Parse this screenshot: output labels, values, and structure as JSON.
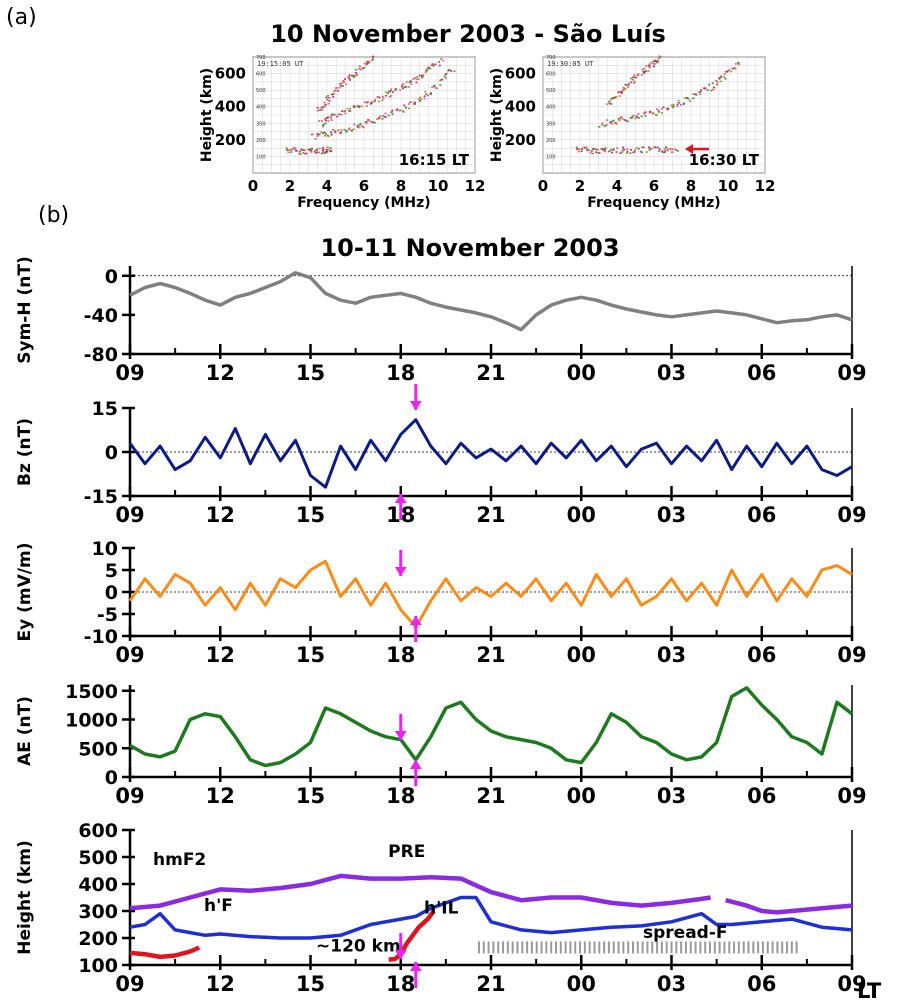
{
  "figure": {
    "panel_a_label": "(a)",
    "panel_b_label": "(b)",
    "title_a": "10 November 2003 - São Luís",
    "title_b": "10-11 November 2003",
    "x_tick_labels": [
      "09",
      "12",
      "15",
      "18",
      "21",
      "00",
      "03",
      "06",
      "09"
    ],
    "x_unit_label": "LT",
    "colors": {
      "symh": "#808080",
      "bz": "#0c1c84",
      "ey": "#ff8c1a",
      "ae": "#1f7a1f",
      "hmf2": "#8a2be2",
      "hf": "#1f2fd6",
      "hil": "#e0141e",
      "arrow": "#ee22ee",
      "spreadf": "#9a9a9a",
      "ionogram_red_arrow": "#e0141e"
    }
  },
  "chart_data": [
    {
      "type": "scatter",
      "id": "ionogram_1",
      "title": "",
      "stamp": "19:15:05 UT",
      "time_label": "16:15 LT",
      "xlabel": "Frequency (MHz)",
      "ylabel": "Height (km)",
      "xlim": [
        0,
        12
      ],
      "ylim": [
        0,
        700
      ],
      "x_ticks": [
        0,
        2,
        4,
        6,
        8,
        10,
        12
      ],
      "y_ticks": [
        200,
        400,
        600
      ],
      "small_y_ticks": [
        "100",
        "200",
        "300",
        "400",
        "500",
        "600",
        "700"
      ],
      "traces": [
        {
          "name": "",
          "x": [
            1.8,
            2.5,
            3.2,
            3.8,
            4.2
          ],
          "y": [
            145,
            135,
            138,
            140,
            150
          ]
        },
        {
          "name": "",
          "x": [
            3.2,
            4.0,
            5.0,
            6.0,
            7.0,
            8.0,
            9.0,
            10.0,
            10.8
          ],
          "y": [
            220,
            240,
            270,
            300,
            340,
            390,
            450,
            540,
            640
          ]
        },
        {
          "name": "",
          "x": [
            3.6,
            4.2,
            5.0,
            6.0,
            7.0,
            7.8,
            8.6,
            9.4,
            10.2
          ],
          "y": [
            300,
            340,
            380,
            420,
            460,
            510,
            560,
            620,
            690
          ]
        },
        {
          "name": "",
          "x": [
            3.5,
            4.0,
            4.6,
            5.2,
            5.8,
            6.5
          ],
          "y": [
            380,
            450,
            520,
            580,
            640,
            700
          ]
        }
      ]
    },
    {
      "type": "scatter",
      "id": "ionogram_2",
      "title": "",
      "stamp": "19:30:05 UT",
      "time_label": "16:30 LT",
      "xlabel": "Frequency (MHz)",
      "ylabel": "Height (km)",
      "xlim": [
        0,
        12
      ],
      "ylim": [
        0,
        700
      ],
      "x_ticks": [
        0,
        2,
        4,
        6,
        8,
        10,
        12
      ],
      "y_ticks": [
        200,
        400,
        600
      ],
      "small_y_ticks": [
        "100",
        "200",
        "300",
        "400",
        "500",
        "600",
        "700"
      ],
      "traces": [
        {
          "name": "",
          "x": [
            1.8,
            2.6,
            3.4,
            4.4,
            5.4,
            6.4,
            7.2
          ],
          "y": [
            150,
            140,
            140,
            142,
            143,
            145,
            145
          ]
        },
        {
          "name": "",
          "x": [
            3.0,
            4.0,
            5.0,
            6.0,
            7.0,
            8.0,
            9.0,
            9.8,
            10.6
          ],
          "y": [
            300,
            320,
            340,
            370,
            410,
            460,
            520,
            590,
            680
          ]
        },
        {
          "name": "",
          "x": [
            3.5,
            4.0,
            4.6,
            5.2,
            5.8,
            6.3
          ],
          "y": [
            420,
            480,
            540,
            600,
            660,
            700
          ]
        }
      ]
    },
    {
      "type": "line",
      "id": "symh",
      "ylabel": "Sym-H (nT)",
      "ylim": [
        -80,
        10
      ],
      "y_ticks": [
        0,
        -40,
        -80
      ],
      "xlim": [
        9,
        33
      ],
      "zero_line": true,
      "series": [
        {
          "name": "",
          "x": [
            9,
            9.5,
            10,
            10.5,
            11,
            11.5,
            12,
            12.5,
            13,
            13.5,
            14,
            14.5,
            15,
            15.5,
            16,
            16.5,
            17,
            17.5,
            18,
            18.5,
            19,
            19.5,
            20,
            20.5,
            21,
            21.5,
            22,
            22.5,
            23,
            23.5,
            24,
            24.5,
            25,
            25.5,
            26,
            26.5,
            27,
            27.5,
            28,
            28.5,
            29,
            29.5,
            30,
            30.5,
            31,
            31.5,
            32,
            32.5,
            33
          ],
          "values": [
            -20,
            -12,
            -8,
            -12,
            -18,
            -25,
            -30,
            -22,
            -18,
            -12,
            -6,
            3,
            -2,
            -18,
            -25,
            -28,
            -22,
            -20,
            -18,
            -22,
            -28,
            -32,
            -35,
            -38,
            -42,
            -48,
            -55,
            -40,
            -30,
            -25,
            -22,
            -25,
            -30,
            -34,
            -37,
            -40,
            -42,
            -40,
            -38,
            -36,
            -38,
            -40,
            -44,
            -48,
            -46,
            -45,
            -42,
            -40,
            -45
          ]
        }
      ]
    },
    {
      "type": "line",
      "id": "bz",
      "ylabel": "Bz (nT)",
      "ylim": [
        -15,
        15
      ],
      "y_ticks": [
        15,
        0,
        -15
      ],
      "xlim": [
        9,
        33
      ],
      "zero_line": true,
      "series": [
        {
          "name": "",
          "x": [
            9,
            9.5,
            10,
            10.5,
            11,
            11.5,
            12,
            12.5,
            13,
            13.5,
            14,
            14.5,
            15,
            15.5,
            16,
            16.5,
            17,
            17.5,
            18,
            18.5,
            19,
            19.5,
            20,
            20.5,
            21,
            21.5,
            22,
            22.5,
            23,
            23.5,
            24,
            24.5,
            25,
            25.5,
            26,
            26.5,
            27,
            27.5,
            28,
            28.5,
            29,
            29.5,
            30,
            30.5,
            31,
            31.5,
            32,
            32.5,
            33
          ],
          "values": [
            3,
            -4,
            2,
            -6,
            -3,
            5,
            -2,
            8,
            -4,
            6,
            -3,
            4,
            -8,
            -12,
            2,
            -6,
            4,
            -3,
            6,
            11,
            2,
            -4,
            3,
            -2,
            1,
            -3,
            2,
            -4,
            3,
            -2,
            4,
            -3,
            2,
            -5,
            1,
            3,
            -4,
            2,
            -3,
            4,
            -6,
            2,
            -5,
            3,
            -4,
            2,
            -6,
            -8,
            -5
          ]
        }
      ]
    },
    {
      "type": "line",
      "id": "ey",
      "ylabel": "Ey (mV/m)",
      "ylim": [
        -10,
        10
      ],
      "y_ticks": [
        10,
        5,
        0,
        -5,
        -10
      ],
      "xlim": [
        9,
        33
      ],
      "zero_line": true,
      "series": [
        {
          "name": "",
          "x": [
            9,
            9.5,
            10,
            10.5,
            11,
            11.5,
            12,
            12.5,
            13,
            13.5,
            14,
            14.5,
            15,
            15.5,
            16,
            16.5,
            17,
            17.5,
            18,
            18.5,
            19,
            19.5,
            20,
            20.5,
            21,
            21.5,
            22,
            22.5,
            23,
            23.5,
            24,
            24.5,
            25,
            25.5,
            26,
            26.5,
            27,
            27.5,
            28,
            28.5,
            29,
            29.5,
            30,
            30.5,
            31,
            31.5,
            32,
            32.5,
            33
          ],
          "values": [
            -2,
            3,
            -1,
            4,
            2,
            -3,
            1,
            -4,
            2,
            -3,
            3,
            1,
            5,
            7,
            -1,
            3,
            -3,
            2,
            -4,
            -8,
            -2,
            3,
            -2,
            1,
            -1,
            2,
            -1,
            3,
            -2,
            2,
            -3,
            4,
            -1,
            3,
            -3,
            -1,
            3,
            -2,
            2,
            -3,
            5,
            -1,
            4,
            -2,
            3,
            -1,
            5,
            6,
            4
          ]
        }
      ]
    },
    {
      "type": "line",
      "id": "ae",
      "ylabel": "AE (nT)",
      "ylim": [
        0,
        1600
      ],
      "y_ticks": [
        1500,
        1000,
        500,
        0
      ],
      "xlim": [
        9,
        33
      ],
      "series": [
        {
          "name": "",
          "x": [
            9,
            9.5,
            10,
            10.5,
            11,
            11.5,
            12,
            12.5,
            13,
            13.5,
            14,
            14.5,
            15,
            15.5,
            16,
            16.5,
            17,
            17.5,
            18,
            18.5,
            19,
            19.5,
            20,
            20.5,
            21,
            21.5,
            22,
            22.5,
            23,
            23.5,
            24,
            24.5,
            25,
            25.5,
            26,
            26.5,
            27,
            27.5,
            28,
            28.5,
            29,
            29.5,
            30,
            30.5,
            31,
            31.5,
            32,
            32.5,
            33
          ],
          "values": [
            550,
            400,
            350,
            450,
            1000,
            1100,
            1050,
            700,
            300,
            200,
            250,
            400,
            600,
            1200,
            1100,
            950,
            800,
            700,
            650,
            300,
            700,
            1200,
            1300,
            1000,
            800,
            700,
            650,
            600,
            500,
            300,
            250,
            600,
            1100,
            950,
            700,
            600,
            400,
            300,
            350,
            600,
            1400,
            1550,
            1250,
            1000,
            700,
            600,
            400,
            1300,
            1100
          ]
        }
      ]
    },
    {
      "type": "line",
      "id": "height",
      "ylabel": "Height (km)",
      "ylim": [
        100,
        600
      ],
      "y_ticks": [
        600,
        500,
        400,
        300,
        200,
        100
      ],
      "xlim": [
        9,
        33
      ],
      "labels": {
        "hmf2": "hmF2",
        "hf": "h'F",
        "hil": "h'IL",
        "pre": "PRE",
        "spreadf": "spread-F",
        "km120": "~120 km"
      },
      "spread_f_range": [
        20.6,
        31.3
      ],
      "series": [
        {
          "name": "hmF2",
          "x": [
            9,
            10,
            11,
            12,
            13,
            14,
            15,
            16,
            17,
            18,
            19,
            20,
            21,
            22,
            23,
            24,
            25,
            26,
            27,
            28,
            28.3
          ],
          "values": [
            310,
            320,
            350,
            380,
            375,
            385,
            400,
            430,
            420,
            420,
            425,
            420,
            370,
            340,
            350,
            350,
            330,
            320,
            330,
            345,
            350
          ]
        },
        {
          "name": "hmF2",
          "x": [
            28.8,
            29.5,
            30,
            30.5,
            31,
            32,
            33
          ],
          "values": [
            340,
            320,
            300,
            295,
            300,
            310,
            320
          ]
        },
        {
          "name": "h'F",
          "x": [
            9,
            9.5,
            10,
            10.5,
            11,
            11.5,
            12,
            13,
            14,
            15,
            16,
            17,
            18,
            18.5,
            19,
            19.5,
            20,
            20.5,
            21,
            22,
            23,
            24,
            25,
            26,
            27,
            28,
            28.5,
            29,
            30,
            31,
            32,
            33
          ],
          "values": [
            240,
            250,
            290,
            230,
            220,
            210,
            215,
            205,
            200,
            200,
            210,
            250,
            270,
            280,
            310,
            330,
            350,
            350,
            260,
            230,
            220,
            230,
            240,
            245,
            260,
            290,
            250,
            250,
            260,
            270,
            240,
            230
          ]
        },
        {
          "name": "h'IL",
          "x": [
            9,
            9.5,
            10,
            10.5,
            11,
            11.3
          ],
          "values": [
            145,
            140,
            130,
            135,
            150,
            165
          ]
        },
        {
          "name": "h'IL",
          "x": [
            17.6,
            17.8,
            18,
            18.2,
            18.4,
            18.6,
            18.9,
            19.1
          ],
          "values": [
            120,
            122,
            140,
            180,
            210,
            240,
            270,
            300
          ]
        }
      ]
    }
  ]
}
